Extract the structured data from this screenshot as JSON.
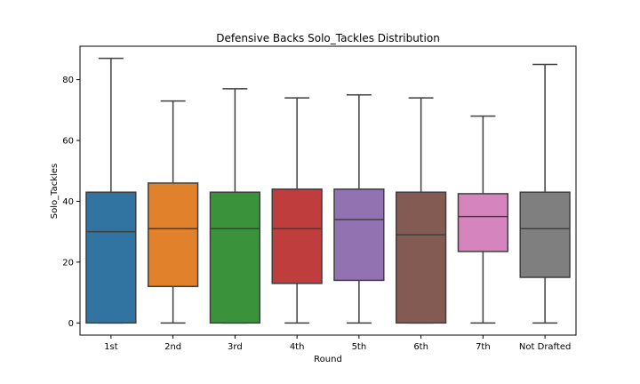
{
  "chart_data": {
    "type": "box",
    "title": "Defensive Backs Solo_Tackles Distribution",
    "xlabel": "Round",
    "ylabel": "Solo_Tackles",
    "ylim": [
      -4,
      91
    ],
    "yticks": [
      0,
      20,
      40,
      60,
      80
    ],
    "ytick_labels": [
      "0",
      "20",
      "40",
      "60",
      "80"
    ],
    "grid": false,
    "categories": [
      "1st",
      "2nd",
      "3rd",
      "4th",
      "5th",
      "6th",
      "7th",
      "Not Drafted"
    ],
    "boxes": [
      {
        "category": "1st",
        "min": 0,
        "q1": 0,
        "median": 30,
        "q3": 43,
        "max": 87,
        "color": "#3274a1"
      },
      {
        "category": "2nd",
        "min": 0,
        "q1": 12,
        "median": 31,
        "q3": 46,
        "max": 73,
        "color": "#e1812c"
      },
      {
        "category": "3rd",
        "min": 0,
        "q1": 0,
        "median": 31,
        "q3": 43,
        "max": 77,
        "color": "#3a923a"
      },
      {
        "category": "4th",
        "min": 0,
        "q1": 13,
        "median": 31,
        "q3": 44,
        "max": 74,
        "color": "#c03d3e"
      },
      {
        "category": "5th",
        "min": 0,
        "q1": 14,
        "median": 34,
        "q3": 44,
        "max": 75,
        "color": "#9372b2"
      },
      {
        "category": "6th",
        "min": 0,
        "q1": 0,
        "median": 29,
        "q3": 43,
        "max": 74,
        "color": "#845b53"
      },
      {
        "category": "7th",
        "min": 0,
        "q1": 23.5,
        "median": 35,
        "q3": 42.5,
        "max": 68,
        "color": "#d684bd"
      },
      {
        "category": "Not Drafted",
        "min": 0,
        "q1": 15,
        "median": 31,
        "q3": 43,
        "max": 85,
        "color": "#7f7f7f"
      }
    ]
  }
}
